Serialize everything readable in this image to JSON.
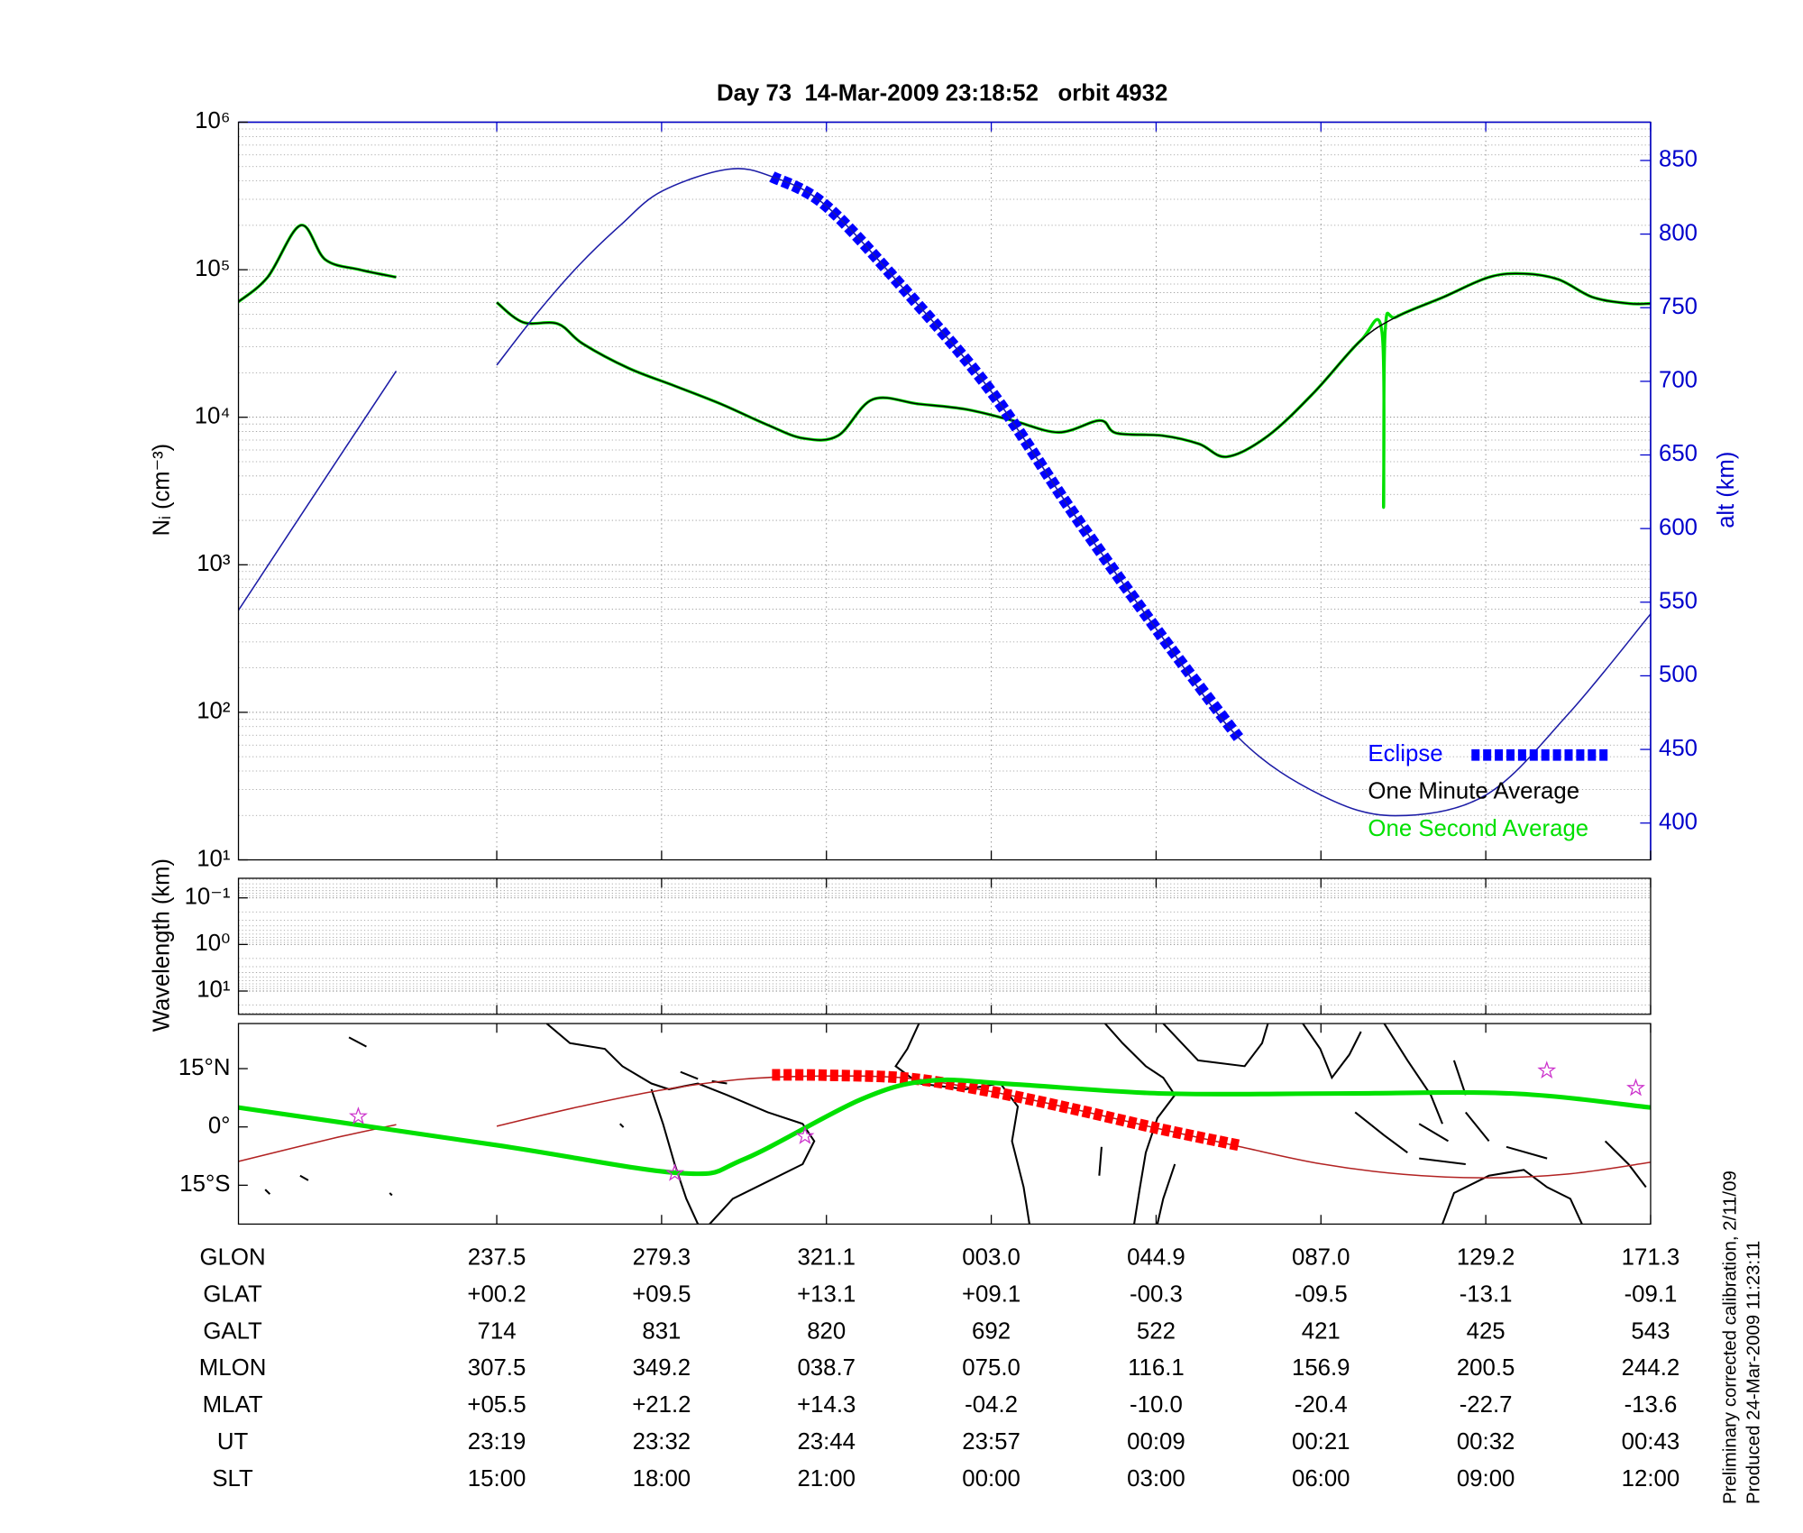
{
  "chart_data": [
    {
      "type": "line",
      "title": "Day 73  14-Mar-2009 23:18:52   orbit 4932",
      "ylabel": "Nᵢ (cm⁻³)",
      "y2label": "alt (km)",
      "xlim": [
        -1.567,
        7
      ],
      "xticks": [
        0,
        1,
        2,
        3,
        4,
        5,
        6,
        7
      ],
      "yscale": "log",
      "ylim": [
        10,
        1000000
      ],
      "yticks": [
        {
          "value": 10,
          "label": "10¹"
        },
        {
          "value": 100,
          "label": "10²"
        },
        {
          "value": 1000,
          "label": "10³"
        },
        {
          "value": 10000,
          "label": "10⁴"
        },
        {
          "value": 100000,
          "label": "10⁵"
        },
        {
          "value": 1000000,
          "label": "10⁶"
        }
      ],
      "yminorticks": [
        20,
        30,
        40,
        50,
        60,
        70,
        80,
        90,
        200,
        300,
        400,
        500,
        600,
        700,
        800,
        900,
        2000,
        3000,
        4000,
        5000,
        6000,
        7000,
        8000,
        9000,
        20000,
        30000,
        40000,
        50000,
        60000,
        70000,
        80000,
        90000,
        200000,
        300000,
        400000,
        500000,
        600000,
        700000,
        800000,
        900000
      ],
      "y2lim": [
        375,
        876
      ],
      "y2ticks": [
        400,
        450,
        500,
        550,
        600,
        650,
        700,
        750,
        800,
        850
      ],
      "grid": true,
      "legend": "lower right",
      "series": [
        {
          "color": "#1c1ca6",
          "axis": "y2",
          "x": [
            -1.57,
            -1.0,
            -0.61,
            -0.3,
            0,
            0.25,
            0.5,
            0.75,
            1.0,
            1.4,
            1.67,
            2.0,
            2.5,
            3.0,
            3.5,
            4.0,
            4.5,
            5.0,
            5.45,
            6.0,
            6.5,
            7.0
          ],
          "values": [
            544,
            641,
            707,
            null,
            711,
            747,
            779,
            806,
            829,
            844,
            839,
            819,
            759,
            693,
            610,
            532,
            458,
            419,
            405,
            419,
            474,
            542
          ]
        },
        {
          "name": "Eclipse",
          "color": "#0000ff",
          "axis": "y2",
          "style": "dashed",
          "x": [
            1.67,
            2.0,
            2.5,
            3.0,
            3.5,
            4.0,
            4.5
          ],
          "values": [
            839,
            819,
            759,
            693,
            610,
            532,
            458
          ]
        },
        {
          "name": "One Minute Average",
          "color": "#000000",
          "x": [
            -1.57,
            -1.39,
            -1.19,
            -1.04,
            -0.83,
            -0.61,
            -0.3,
            0,
            0.16,
            0.37,
            0.52,
            0.8,
            1.08,
            1.36,
            1.64,
            1.86,
            2.07,
            2.28,
            2.56,
            2.85,
            3.13,
            3.41,
            3.66,
            3.76,
            4.04,
            4.26,
            4.43,
            4.68,
            4.96,
            5.24,
            5.46,
            5.74,
            6.02,
            6.23,
            6.44,
            6.65,
            6.87,
            7.0
          ],
          "values": [
            60300,
            89000,
            200000,
            117000,
            100000,
            89000,
            null,
            60000,
            44000,
            43000,
            31600,
            21500,
            16300,
            12300,
            8900,
            7200,
            7500,
            13200,
            12300,
            11300,
            9500,
            7900,
            9500,
            7800,
            7500,
            6600,
            5400,
            7500,
            14800,
            33000,
            48000,
            65000,
            89000,
            94000,
            86000,
            65000,
            59000,
            59000
          ]
        },
        {
          "name": "One Second Average",
          "color": "#00e000",
          "x": [
            -1.57,
            -1.39,
            -1.19,
            -1.04,
            -0.83,
            -0.61,
            -0.3,
            0,
            0.16,
            0.37,
            0.52,
            0.8,
            1.08,
            1.36,
            1.64,
            1.86,
            2.07,
            2.28,
            2.56,
            2.85,
            3.13,
            3.41,
            3.66,
            3.76,
            4.04,
            4.26,
            4.43,
            4.68,
            4.96,
            5.24,
            5.37,
            5.38,
            5.39,
            5.46,
            5.74,
            6.02,
            6.23,
            6.44,
            6.65,
            6.87,
            7.0
          ],
          "values": [
            60300,
            89000,
            200000,
            117000,
            100000,
            89000,
            null,
            60000,
            44000,
            43000,
            31600,
            21500,
            16300,
            12300,
            8900,
            7200,
            7500,
            13200,
            12300,
            11300,
            9500,
            7900,
            9500,
            7800,
            7500,
            6600,
            5400,
            7500,
            14800,
            33000,
            38000,
            2450,
            39000,
            48000,
            65000,
            89000,
            94000,
            86000,
            65000,
            59000,
            59000
          ]
        }
      ]
    },
    {
      "type": "line",
      "ylabel": "Wavelength (km)",
      "xlim": [
        -1.567,
        7
      ],
      "xticks": [
        0,
        1,
        2,
        3,
        4,
        5,
        6,
        7
      ],
      "yscale": "log",
      "yreverse": true,
      "ylim": [
        0.038,
        31.6
      ],
      "yticks": [
        {
          "value": 0.1,
          "label": "10⁻¹"
        },
        {
          "value": 1,
          "label": "10⁰"
        },
        {
          "value": 10,
          "label": "10¹"
        }
      ],
      "yminorticks": [
        0.04,
        0.05,
        0.06,
        0.07,
        0.08,
        0.09,
        0.2,
        0.3,
        0.4,
        0.5,
        0.6,
        0.7,
        0.8,
        0.9,
        2,
        3,
        4,
        5,
        6,
        7,
        8,
        9,
        20,
        30
      ],
      "grid": true,
      "series": []
    },
    {
      "type": "map",
      "xlim": [
        -1.567,
        7
      ],
      "xticks": [
        0,
        1,
        2,
        3,
        4,
        5,
        6,
        7
      ],
      "ylim": [
        -25,
        26.6
      ],
      "yticks": [
        {
          "value": 15,
          "label": "15°N"
        },
        {
          "value": 0,
          "label": "0°"
        },
        {
          "value": -15,
          "label": "15°S"
        }
      ],
      "series": [
        {
          "color": "#b22222",
          "x": [
            -1.57,
            -1.0,
            -0.61,
            -0.3,
            0,
            0.5,
            1.0,
            1.5,
            2.0,
            2.5,
            3.0,
            3.5,
            4.0,
            4.5,
            5.0,
            5.5,
            6.0,
            6.5,
            7.0
          ],
          "values": [
            -8.9,
            -3.0,
            0.6,
            null,
            0.2,
            5.2,
            9.5,
            12.3,
            13.1,
            12.5,
            9.1,
            4.6,
            -0.3,
            -5.0,
            -9.5,
            -12.2,
            -13.1,
            -12.1,
            -9.1
          ]
        },
        {
          "color": "#ff0000",
          "style": "dashed",
          "x": [
            1.67,
            2.0,
            2.5,
            3.0,
            3.5,
            4.0,
            4.5
          ],
          "values": [
            13.4,
            13.3,
            12.5,
            9.1,
            4.6,
            -0.3,
            -4.7
          ]
        },
        {
          "color": "#00e000",
          "style": "thick",
          "x": [
            -1.57,
            0,
            1.12,
            1.5,
            2.21,
            2.63,
            3.13,
            4.04,
            5.1,
            6.16,
            7.0
          ],
          "values": [
            5,
            -4.7,
            -11.9,
            -8.3,
            7.1,
            11.9,
            11,
            8.6,
            8.6,
            8.6,
            5
          ]
        },
        {
          "color": "#cc33cc",
          "marker": "star",
          "x": [
            -0.84,
            1.08,
            1.87,
            6.37,
            6.91
          ],
          "values": [
            2.7,
            -11.9,
            -2.4,
            14.5,
            10
          ]
        }
      ]
    }
  ],
  "ephemeris": {
    "rows": [
      {
        "name": "GLON",
        "values": [
          "237.5",
          "279.3",
          "321.1",
          "003.0",
          "044.9",
          "087.0",
          "129.2",
          "171.3"
        ]
      },
      {
        "name": "GLAT",
        "values": [
          "+00.2",
          "+09.5",
          "+13.1",
          "+09.1",
          "-00.3",
          "-09.5",
          "-13.1",
          "-09.1"
        ]
      },
      {
        "name": "GALT",
        "values": [
          "714",
          "831",
          "820",
          "692",
          "522",
          "421",
          "425",
          "543"
        ]
      },
      {
        "name": "MLON",
        "values": [
          "307.5",
          "349.2",
          "038.7",
          "075.0",
          "116.1",
          "156.9",
          "200.5",
          "244.2"
        ]
      },
      {
        "name": "MLAT",
        "values": [
          "+05.5",
          "+21.2",
          "+14.3",
          "-04.2",
          "-10.0",
          "-20.4",
          "-22.7",
          "-13.6"
        ]
      },
      {
        "name": "UT",
        "values": [
          "23:19",
          "23:32",
          "23:44",
          "23:57",
          "00:09",
          "00:21",
          "00:32",
          "00:43"
        ]
      },
      {
        "name": "SLT",
        "values": [
          "15:00",
          "18:00",
          "21:00",
          "00:00",
          "03:00",
          "06:00",
          "09:00",
          "12:00"
        ]
      }
    ]
  },
  "footer": [
    "Preliminary corrected calibration, 2/11/09",
    "Produced 24-Mar-2009 11:23:11"
  ]
}
